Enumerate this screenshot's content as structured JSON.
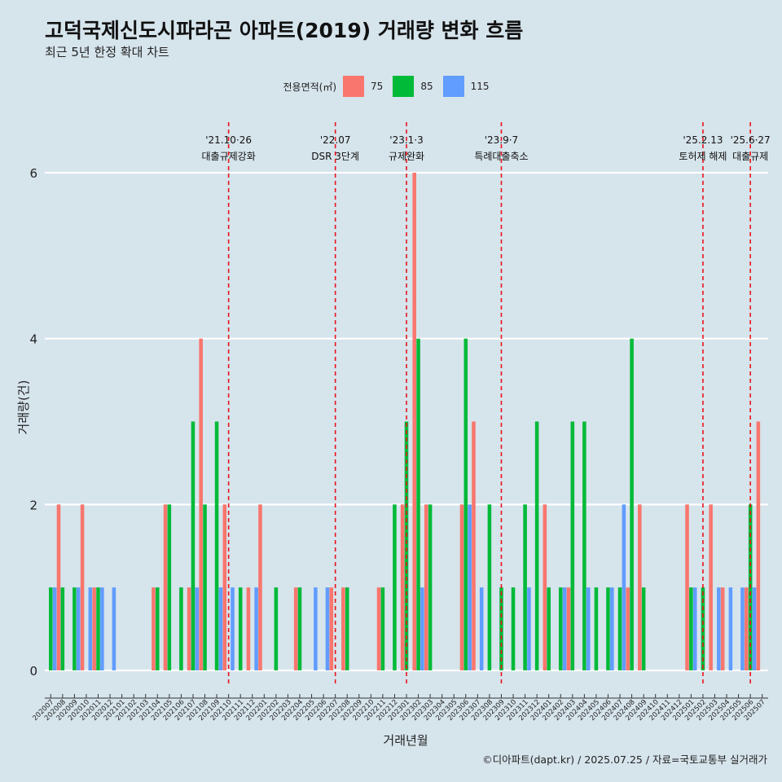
{
  "header": {
    "title": "고덕국제신도시파라곤 아파트(2019) 거래량 변화 흐름",
    "subtitle": "최근 5년 한정 확대 차트"
  },
  "legend": {
    "title": "전용면적(㎡)",
    "items": [
      {
        "label": "75",
        "color": "#f8766d"
      },
      {
        "label": "85",
        "color": "#00ba38"
      },
      {
        "label": "115",
        "color": "#619cff"
      }
    ]
  },
  "caption": "©디아파트(dapt.kr) / 2025.07.25 / 자료=국토교통부 실거래가",
  "chart_data": {
    "type": "bar",
    "xlabel": "거래년월",
    "ylabel": "거래량(건)",
    "ylim": [
      -0.45,
      6.7
    ],
    "yticks": [
      0,
      2,
      4,
      6
    ],
    "grid": true,
    "legend_position": "top",
    "months": [
      "202007",
      "202008",
      "202009",
      "202010",
      "202011",
      "202012",
      "202101",
      "202102",
      "202103",
      "202104",
      "202105",
      "202106",
      "202107",
      "202108",
      "202109",
      "202110",
      "202111",
      "202112",
      "202201",
      "202202",
      "202203",
      "202204",
      "202205",
      "202206",
      "202207",
      "202208",
      "202209",
      "202210",
      "202211",
      "202212",
      "202301",
      "202302",
      "202303",
      "202304",
      "202305",
      "202306",
      "202307",
      "202308",
      "202309",
      "202310",
      "202311",
      "202312",
      "202401",
      "202402",
      "202403",
      "202404",
      "202405",
      "202406",
      "202407",
      "202408",
      "202409",
      "202410",
      "202411",
      "202412",
      "202501",
      "202502",
      "202503",
      "202504",
      "202505",
      "202506",
      "202507"
    ],
    "series": [
      {
        "name": "75",
        "color": "#f8766d",
        "values": [
          0,
          2,
          0,
          2,
          1,
          0,
          0,
          0,
          0,
          1,
          2,
          0,
          1,
          4,
          0,
          2,
          0,
          1,
          2,
          0,
          0,
          1,
          0,
          0,
          1,
          1,
          0,
          0,
          1,
          0,
          2,
          6,
          2,
          0,
          0,
          2,
          3,
          0,
          0,
          0,
          0,
          0,
          2,
          0,
          1,
          0,
          0,
          0,
          0,
          1,
          2,
          0,
          0,
          0,
          2,
          0,
          2,
          1,
          0,
          1,
          3
        ]
      },
      {
        "name": "85",
        "color": "#00ba38",
        "values": [
          1,
          1,
          1,
          0,
          1,
          0,
          0,
          0,
          0,
          1,
          2,
          1,
          3,
          2,
          3,
          0,
          1,
          0,
          0,
          1,
          0,
          1,
          0,
          0,
          0,
          1,
          0,
          0,
          1,
          2,
          3,
          4,
          2,
          0,
          0,
          4,
          0,
          2,
          1,
          1,
          2,
          3,
          1,
          1,
          3,
          3,
          1,
          1,
          1,
          4,
          1,
          0,
          0,
          0,
          1,
          1,
          0,
          0,
          0,
          2,
          0
        ]
      },
      {
        "name": "115",
        "color": "#619cff",
        "values": [
          1,
          0,
          1,
          1,
          1,
          1,
          0,
          0,
          0,
          0,
          0,
          0,
          1,
          0,
          1,
          1,
          0,
          1,
          0,
          0,
          0,
          0,
          1,
          1,
          0,
          0,
          0,
          0,
          0,
          0,
          0,
          1,
          0,
          0,
          0,
          2,
          1,
          0,
          0,
          0,
          1,
          0,
          0,
          1,
          0,
          1,
          0,
          1,
          2,
          0,
          0,
          0,
          0,
          0,
          1,
          0,
          1,
          1,
          1,
          1,
          0
        ]
      }
    ],
    "annotations": [
      {
        "month": "202110",
        "date": "'21.10·26",
        "label": "대출규제강화"
      },
      {
        "month": "202207",
        "date": "'22.07",
        "label": "DSR 3단계"
      },
      {
        "month": "202301",
        "date": "'23.1·3",
        "label": "규제완화"
      },
      {
        "month": "202309",
        "date": "'23.9·7",
        "label": "특례대출축소"
      },
      {
        "month": "202502",
        "date": "'25.2.13",
        "label": "토허제 해제"
      },
      {
        "month": "202506",
        "date": "'25.6·27",
        "label": "대출규제"
      }
    ]
  }
}
